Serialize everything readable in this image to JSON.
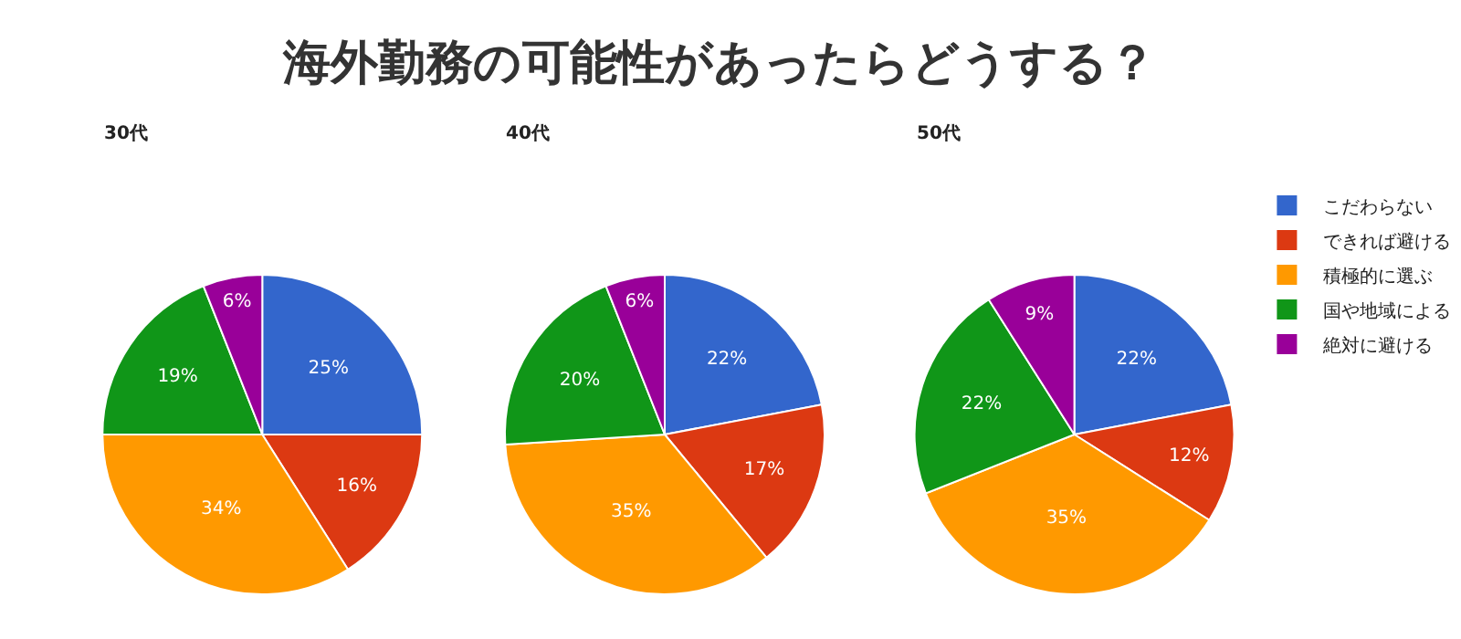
{
  "chart_data": {
    "type": "pie",
    "title": "海外勤務の可能性があったらどうする？",
    "categories": [
      "こだわらない",
      "できれば避ける",
      "積極的に選ぶ",
      "国や地域による",
      "絶対に避ける"
    ],
    "colors": [
      "#3366cc",
      "#dc3912",
      "#ff9900",
      "#109618",
      "#990099"
    ],
    "series": [
      {
        "name": "30代",
        "values": [
          25,
          16,
          34,
          19,
          6
        ],
        "value_labels": [
          "25%",
          "16%",
          "34%",
          "19%",
          "6%"
        ]
      },
      {
        "name": "40代",
        "values": [
          22,
          17,
          35,
          20,
          6
        ],
        "value_labels": [
          "22%",
          "17%",
          "35%",
          "20%",
          "6%"
        ]
      },
      {
        "name": "50代",
        "values": [
          22,
          12,
          35,
          22,
          9
        ],
        "value_labels": [
          "22%",
          "12%",
          "35%",
          "22%",
          "9%"
        ]
      }
    ],
    "legend": "top right"
  }
}
